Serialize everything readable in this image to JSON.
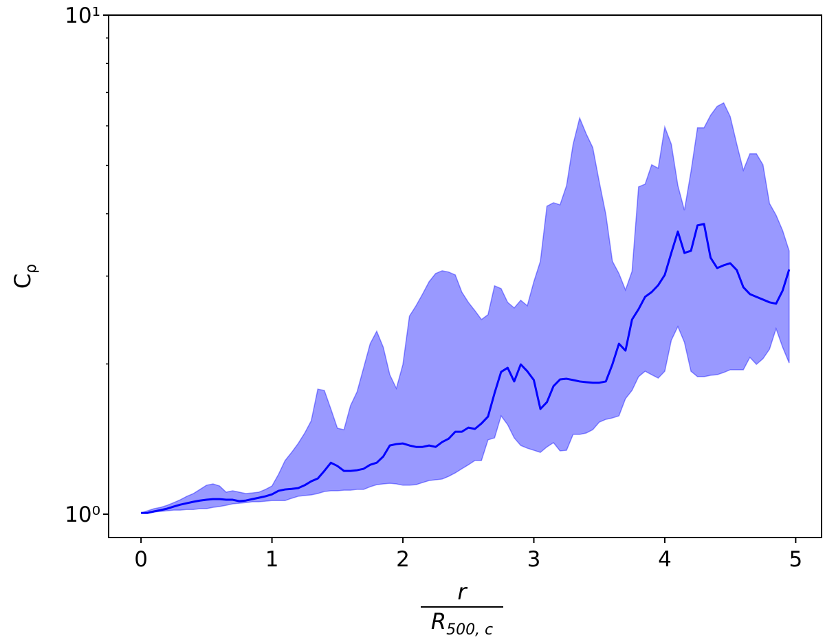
{
  "chart_data": {
    "type": "line",
    "ylabel": "C",
    "ylabel_subscript": "ρ",
    "xlabel_numerator": "r",
    "xlabel_denominator": "R",
    "xlabel_denominator_subscript": "500, c",
    "x": [
      0,
      0.05,
      0.1,
      0.15,
      0.2,
      0.25,
      0.3,
      0.35,
      0.4,
      0.45,
      0.5,
      0.55,
      0.6,
      0.65,
      0.7,
      0.75,
      0.8,
      0.85,
      0.9,
      0.95,
      1,
      1.05,
      1.1,
      1.15,
      1.2,
      1.25,
      1.3,
      1.35,
      1.4,
      1.45,
      1.5,
      1.55,
      1.6,
      1.65,
      1.7,
      1.75,
      1.8,
      1.85,
      1.9,
      1.95,
      2,
      2.05,
      2.1,
      2.15,
      2.2,
      2.25,
      2.3,
      2.35,
      2.4,
      2.45,
      2.5,
      2.55,
      2.6,
      2.65,
      2.7,
      2.75,
      2.8,
      2.85,
      2.9,
      2.95,
      3,
      3.05,
      3.1,
      3.15,
      3.2,
      3.25,
      3.3,
      3.35,
      3.4,
      3.45,
      3.5,
      3.55,
      3.6,
      3.65,
      3.7,
      3.75,
      3.8,
      3.85,
      3.9,
      3.95,
      4,
      4.05,
      4.1,
      4.15,
      4.2,
      4.25,
      4.3,
      4.35,
      4.4,
      4.45,
      4.5,
      4.55,
      4.6,
      4.65,
      4.7,
      4.75,
      4.8,
      4.85,
      4.9,
      4.95
    ],
    "line": {
      "color": "#0000ff",
      "values": [
        1.006,
        1.006,
        1.013,
        1.019,
        1.026,
        1.036,
        1.045,
        1.052,
        1.059,
        1.065,
        1.069,
        1.072,
        1.072,
        1.069,
        1.069,
        1.062,
        1.065,
        1.072,
        1.079,
        1.086,
        1.096,
        1.114,
        1.121,
        1.124,
        1.128,
        1.143,
        1.164,
        1.179,
        1.221,
        1.268,
        1.249,
        1.221,
        1.221,
        1.225,
        1.233,
        1.256,
        1.268,
        1.305,
        1.373,
        1.382,
        1.386,
        1.373,
        1.364,
        1.364,
        1.373,
        1.364,
        1.395,
        1.417,
        1.463,
        1.463,
        1.491,
        1.482,
        1.52,
        1.569,
        1.748,
        1.928,
        1.965,
        1.845,
        1.996,
        1.934,
        1.857,
        1.625,
        1.677,
        1.805,
        1.862,
        1.868,
        1.857,
        1.845,
        1.839,
        1.834,
        1.834,
        1.845,
        1.996,
        2.196,
        2.127,
        2.455,
        2.575,
        2.726,
        2.787,
        2.877,
        3.016,
        3.338,
        3.684,
        3.338,
        3.37,
        3.791,
        3.815,
        3.265,
        3.113,
        3.153,
        3.183,
        3.084,
        2.85,
        2.761,
        2.726,
        2.692,
        2.658,
        2.641,
        2.805,
        3.093
      ]
    },
    "band": {
      "color": "#0000ff",
      "opacity": 0.4,
      "upper": [
        1.006,
        1.016,
        1.026,
        1.032,
        1.042,
        1.055,
        1.069,
        1.086,
        1.1,
        1.121,
        1.143,
        1.15,
        1.139,
        1.107,
        1.114,
        1.107,
        1.1,
        1.103,
        1.107,
        1.121,
        1.139,
        1.202,
        1.281,
        1.33,
        1.386,
        1.454,
        1.539,
        1.781,
        1.77,
        1.625,
        1.487,
        1.477,
        1.651,
        1.759,
        1.965,
        2.196,
        2.326,
        2.161,
        1.903,
        1.787,
        1.996,
        2.494,
        2.616,
        2.761,
        2.923,
        3.036,
        3.075,
        3.056,
        3.016,
        2.787,
        2.658,
        2.558,
        2.455,
        2.511,
        2.868,
        2.832,
        2.658,
        2.59,
        2.684,
        2.616,
        2.923,
        3.213,
        4.142,
        4.208,
        4.168,
        4.557,
        5.514,
        6.222,
        5.784,
        5.428,
        4.63,
        3.988,
        3.213,
        3.036,
        2.814,
        3.066,
        4.528,
        4.586,
        5.014,
        4.935,
        5.967,
        5.514,
        4.557,
        4.064,
        4.857,
        5.948,
        5.948,
        6.301,
        6.565,
        6.67,
        6.261,
        5.514,
        4.889,
        5.274,
        5.274,
        5.014,
        4.194,
        3.975,
        3.703,
        3.37
      ],
      "lower": [
        1.006,
        1.006,
        1.01,
        1.013,
        1.016,
        1.019,
        1.019,
        1.022,
        1.022,
        1.026,
        1.026,
        1.032,
        1.036,
        1.042,
        1.049,
        1.052,
        1.055,
        1.059,
        1.059,
        1.062,
        1.065,
        1.065,
        1.065,
        1.076,
        1.086,
        1.09,
        1.093,
        1.1,
        1.11,
        1.114,
        1.114,
        1.117,
        1.117,
        1.121,
        1.121,
        1.135,
        1.146,
        1.15,
        1.153,
        1.15,
        1.143,
        1.143,
        1.146,
        1.157,
        1.168,
        1.172,
        1.176,
        1.191,
        1.21,
        1.233,
        1.256,
        1.281,
        1.281,
        1.409,
        1.422,
        1.574,
        1.511,
        1.422,
        1.373,
        1.356,
        1.343,
        1.33,
        1.364,
        1.391,
        1.339,
        1.343,
        1.445,
        1.445,
        1.454,
        1.477,
        1.529,
        1.549,
        1.559,
        1.574,
        1.704,
        1.77,
        1.886,
        1.934,
        1.903,
        1.874,
        1.934,
        2.231,
        2.377,
        2.21,
        1.934,
        1.886,
        1.886,
        1.898,
        1.903,
        1.923,
        1.947,
        1.947,
        1.947,
        2.062,
        1.996,
        2.049,
        2.141,
        2.354,
        2.161,
        2.009
      ]
    },
    "xlim": [
      -0.2475,
      5.1975
    ],
    "xticks": [
      0,
      1,
      2,
      3,
      4,
      5
    ],
    "ylim": [
      0.898,
      10
    ],
    "yscale": "log",
    "yticks": [
      {
        "value": 1,
        "label": "10⁰"
      },
      {
        "value": 10,
        "label": "10¹"
      }
    ],
    "yminorticks": [
      2,
      3,
      4,
      5,
      6,
      7,
      8,
      9
    ]
  }
}
